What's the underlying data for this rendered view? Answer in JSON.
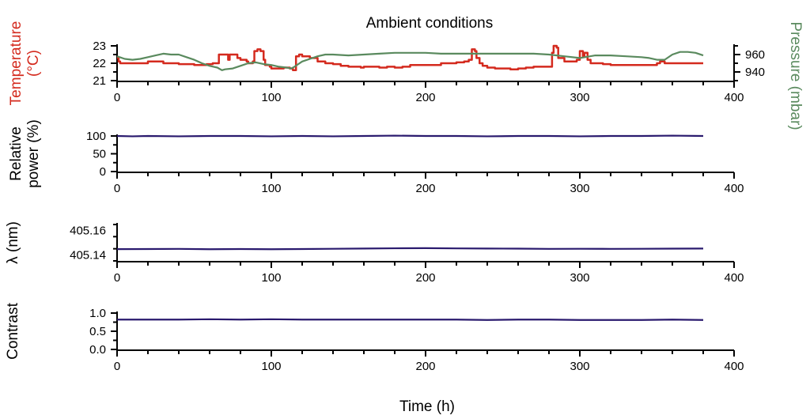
{
  "title": "Ambient conditions",
  "xlabel": "Time (h)",
  "colors": {
    "temperature": "#d42a1e",
    "pressure": "#5a8a5e",
    "trace": "#2a1a6e"
  },
  "chart_data": [
    {
      "type": "line",
      "title": "Ambient conditions",
      "xlabel": "",
      "xlim": [
        0,
        400
      ],
      "xticks": [
        0,
        100,
        200,
        300,
        400
      ],
      "ylabel": "Temperature\n(°C)",
      "ylim": [
        21,
        23
      ],
      "yticks": [
        21,
        22,
        23
      ],
      "ylabel2": "Pressure (mbar)",
      "y2lim": [
        930,
        970
      ],
      "y2ticks": [
        940,
        960
      ],
      "series": [
        {
          "axis": "left",
          "x": [
            0,
            1,
            2,
            10,
            20,
            30,
            40,
            50,
            55,
            58,
            62,
            65,
            66,
            70,
            72,
            73,
            76,
            78,
            80,
            84,
            85,
            88,
            89,
            91,
            93,
            95,
            96,
            99,
            100,
            104,
            108,
            112,
            113,
            114,
            116,
            118,
            120,
            125,
            130,
            135,
            140,
            145,
            150,
            155,
            158,
            160,
            165,
            170,
            175,
            180,
            185,
            190,
            195,
            200,
            210,
            220,
            225,
            228,
            230,
            232,
            233,
            235,
            237,
            240,
            245,
            250,
            255,
            260,
            265,
            270,
            275,
            278,
            280,
            282,
            283,
            285,
            286,
            290,
            295,
            298,
            300,
            302,
            303,
            305,
            307,
            310,
            315,
            320,
            330,
            340,
            348,
            350,
            352,
            355,
            360,
            370,
            380
          ],
          "y": [
            22.3,
            22.1,
            22.0,
            22.0,
            22.1,
            22.0,
            21.95,
            21.9,
            21.9,
            21.95,
            22.0,
            22.0,
            22.5,
            22.5,
            22.2,
            22.5,
            22.5,
            22.3,
            22.2,
            22.1,
            22.0,
            22.1,
            22.7,
            22.8,
            22.7,
            22.2,
            21.9,
            21.8,
            21.7,
            21.7,
            21.75,
            21.7,
            21.7,
            21.6,
            22.4,
            22.5,
            22.4,
            22.3,
            22.1,
            22.0,
            21.95,
            21.85,
            21.8,
            21.8,
            21.75,
            21.8,
            21.8,
            21.75,
            21.8,
            21.75,
            21.8,
            21.9,
            21.9,
            21.9,
            22.0,
            22.05,
            22.1,
            22.2,
            22.8,
            22.7,
            22.3,
            22.0,
            21.85,
            21.75,
            21.7,
            21.7,
            21.65,
            21.7,
            21.75,
            21.8,
            21.8,
            21.8,
            21.8,
            22.6,
            23.0,
            22.9,
            22.3,
            22.1,
            22.1,
            22.2,
            22.7,
            22.4,
            22.6,
            22.2,
            22.0,
            22.0,
            21.95,
            21.9,
            21.9,
            21.9,
            21.9,
            22.0,
            22.1,
            22.0,
            22.0,
            22.0,
            22.0
          ]
        },
        {
          "axis": "right",
          "x": [
            0,
            5,
            10,
            15,
            20,
            25,
            30,
            35,
            40,
            45,
            50,
            55,
            60,
            65,
            68,
            70,
            75,
            80,
            85,
            90,
            95,
            100,
            105,
            110,
            113,
            115,
            120,
            125,
            130,
            135,
            140,
            150,
            160,
            170,
            180,
            190,
            200,
            210,
            220,
            230,
            240,
            250,
            260,
            270,
            280,
            290,
            300,
            310,
            320,
            330,
            340,
            345,
            350,
            355,
            360,
            365,
            370,
            375,
            380
          ],
          "y": [
            958,
            955,
            954,
            955,
            957,
            959,
            961,
            960,
            960,
            957,
            954,
            950,
            947,
            945,
            942,
            943,
            944,
            947,
            950,
            951,
            949,
            948,
            946,
            945,
            944,
            946,
            952,
            955,
            958,
            960,
            960,
            959,
            960,
            961,
            962,
            962,
            962,
            961,
            961,
            961,
            961,
            961,
            961,
            961,
            960,
            958,
            956,
            959,
            959,
            958,
            957,
            956,
            954,
            954,
            960,
            963,
            963,
            962,
            959
          ]
        }
      ]
    },
    {
      "type": "line",
      "xlabel": "",
      "xlim": [
        0,
        400
      ],
      "xticks": [
        0,
        100,
        200,
        300,
        400
      ],
      "ylabel": "Relative\npower (%)",
      "ylim": [
        0,
        100
      ],
      "yticks": [
        0,
        50,
        100
      ],
      "series": [
        {
          "x": [
            0,
            10,
            20,
            40,
            60,
            80,
            100,
            120,
            140,
            160,
            180,
            200,
            220,
            240,
            260,
            280,
            300,
            320,
            340,
            360,
            380
          ],
          "y": [
            100,
            99,
            100,
            99,
            100,
            100,
            99,
            100,
            99,
            100,
            101,
            100,
            100,
            99,
            100,
            100,
            99,
            100,
            100,
            101,
            100
          ]
        }
      ]
    },
    {
      "type": "line",
      "xlabel": "",
      "xlim": [
        0,
        400
      ],
      "xticks": [
        0,
        100,
        200,
        300,
        400
      ],
      "ylabel": "λ (nm)",
      "ylim": [
        405.135,
        405.165
      ],
      "yticks": [
        405.14,
        405.16
      ],
      "series": [
        {
          "x": [
            0,
            20,
            40,
            60,
            80,
            100,
            120,
            140,
            160,
            180,
            200,
            220,
            240,
            260,
            280,
            300,
            320,
            340,
            360,
            380
          ],
          "y": [
            405.1447,
            405.1448,
            405.1449,
            405.1446,
            405.1448,
            405.1446,
            405.1448,
            405.145,
            405.1452,
            405.1454,
            405.1455,
            405.1453,
            405.1452,
            405.1451,
            405.1449,
            405.145,
            405.1449,
            405.145,
            405.1451,
            405.1452
          ]
        }
      ]
    },
    {
      "type": "line",
      "xlabel": "Time (h)",
      "xlim": [
        0,
        400
      ],
      "xticks": [
        0,
        100,
        200,
        300,
        400
      ],
      "ylabel": "Contrast",
      "ylim": [
        0.0,
        1.0
      ],
      "yticks": [
        0.0,
        0.5,
        1.0
      ],
      "ytick_labels": [
        "0.0",
        "0.5",
        "1.0"
      ],
      "series": [
        {
          "x": [
            0,
            20,
            40,
            60,
            80,
            100,
            120,
            140,
            160,
            180,
            200,
            220,
            240,
            260,
            280,
            300,
            320,
            340,
            360,
            380
          ],
          "y": [
            0.82,
            0.82,
            0.82,
            0.83,
            0.82,
            0.83,
            0.82,
            0.82,
            0.82,
            0.82,
            0.82,
            0.82,
            0.81,
            0.82,
            0.82,
            0.81,
            0.81,
            0.81,
            0.82,
            0.81
          ]
        }
      ]
    }
  ]
}
